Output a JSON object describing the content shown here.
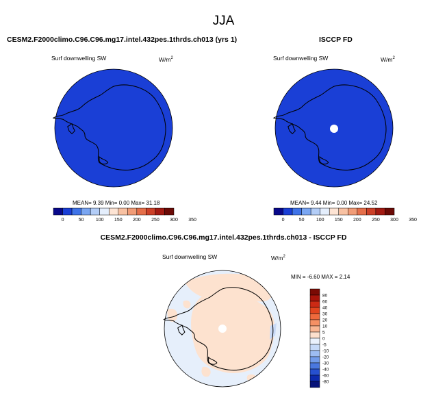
{
  "figure": {
    "season": "JJA"
  },
  "panels": {
    "model": {
      "title": "CESM2.F2000climo.C96.C96.mg17.intel.432pes.1thrds.ch013 (yrs 1)",
      "variable": "Surf downwelling SW",
      "units_base": "W/m",
      "units_exp": "2",
      "stats": "MEAN=   9.39  Min=   0.00  Max=  31.18"
    },
    "obs": {
      "title": "ISCCP FD",
      "variable": "Surf downwelling SW",
      "units_base": "W/m",
      "units_exp": "2",
      "stats": "MEAN=   9.44  Min=   0.00  Max=  24.52"
    },
    "diff": {
      "title": "CESM2.F2000climo.C96.C96.mg17.intel.432pes.1thrds.ch013 - ISCCP FD",
      "variable": "Surf downwelling SW",
      "units_base": "W/m",
      "units_exp": "2",
      "stats": "MIN =  -6.60 MAX =   2.14"
    }
  },
  "colorbar_abs": {
    "labels": [
      "0",
      "50",
      "100",
      "150",
      "200",
      "250",
      "300",
      "350"
    ],
    "colors": [
      "#08088a",
      "#1a3fd6",
      "#3f73e8",
      "#7aa6f2",
      "#b3cdf7",
      "#e4eefc",
      "#fde4d4",
      "#f8c1a2",
      "#f19c77",
      "#e56f4a",
      "#cc4028",
      "#a31a12",
      "#6b0a06"
    ]
  },
  "colorbar_diff": {
    "labels": [
      "80",
      "60",
      "40",
      "30",
      "20",
      "10",
      "5",
      "0",
      "-5",
      "-10",
      "-20",
      "-30",
      "-40",
      "-60",
      "-80"
    ],
    "colors": [
      "#7a0a04",
      "#a8140a",
      "#cc2a14",
      "#e2461f",
      "#ef6a3c",
      "#f59064",
      "#f9b693",
      "#fde0cd",
      "#eaf2fd",
      "#c6daf8",
      "#9dbdf2",
      "#729cea",
      "#4a78df",
      "#2650cf",
      "#0c2aad",
      "#07137a"
    ]
  },
  "map": {
    "ocean_color_abs": "#1a3fd6",
    "ocean_color_diff": "#e6effb",
    "positive_color": "#fde2cf",
    "missing_color": "#ffffff"
  }
}
